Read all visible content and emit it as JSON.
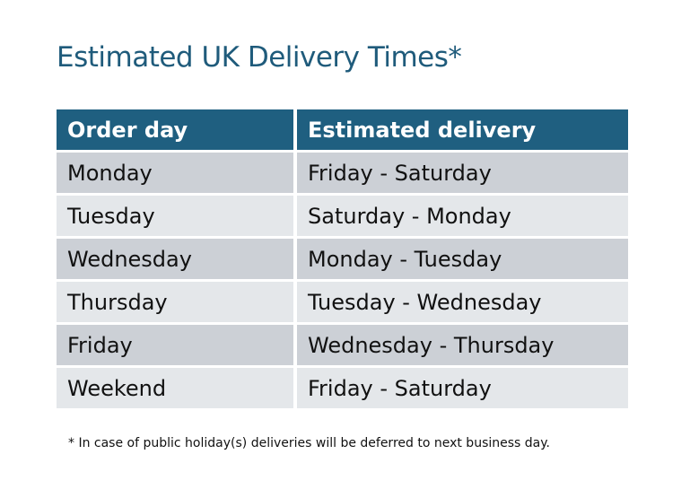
{
  "title": "Estimated UK Delivery Times*",
  "table": {
    "headers": [
      "Order day",
      "Estimated delivery"
    ],
    "rows": [
      [
        "Monday",
        "Friday - Saturday"
      ],
      [
        "Tuesday",
        "Saturday - Monday"
      ],
      [
        "Wednesday",
        "Monday - Tuesday"
      ],
      [
        "Thursday",
        "Tuesday - Wednesday"
      ],
      [
        "Friday",
        "Wednesday - Thursday"
      ],
      [
        "Weekend",
        "Friday - Saturday"
      ]
    ]
  },
  "footnote": "* In case of public holiday(s) deliveries will be deferred to next business day.",
  "colors": {
    "header": "#1f5f80",
    "row_dark": "#ccd0d6",
    "row_light": "#e4e7ea",
    "title": "#1f5b7b"
  }
}
